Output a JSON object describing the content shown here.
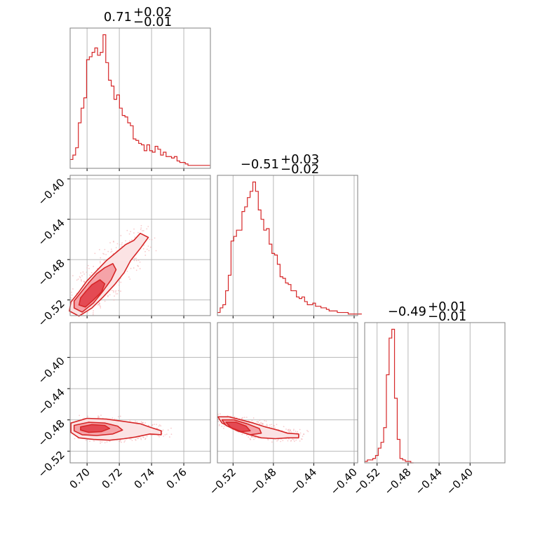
{
  "chart_data": {
    "type": "corner",
    "color": "#d62728",
    "fill_colors": [
      "#fbe3e4",
      "#f5a3a8",
      "#e44a53"
    ],
    "grid": true,
    "parameters": [
      {
        "index": 0,
        "median": 0.71,
        "plus": 0.02,
        "minus": 0.01,
        "title": {
          "main": "0.71",
          "sup": "+0.02",
          "sub": "−0.01"
        }
      },
      {
        "index": 1,
        "median": -0.51,
        "plus": 0.03,
        "minus": 0.02,
        "title": {
          "main": "−0.51",
          "sup": "+0.03",
          "sub": "−0.02"
        }
      },
      {
        "index": 2,
        "median": -0.49,
        "plus": 0.01,
        "minus": 0.01,
        "title": {
          "main": "−0.49",
          "sup": "+0.01",
          "sub": "−0.01"
        }
      }
    ],
    "axes": {
      "p0": {
        "range": [
          0.6895,
          0.7765
        ],
        "ticks": [
          0.7,
          0.72,
          0.74,
          0.76
        ],
        "tick_labels": [
          "0.70",
          "0.72",
          "0.74",
          "0.76"
        ]
      },
      "p1": {
        "range": [
          -0.5355,
          -0.3965
        ],
        "ticks": [
          -0.52,
          -0.48,
          -0.44,
          -0.4
        ],
        "tick_labels": [
          "−0.52",
          "−0.48",
          "−0.44",
          "−0.40"
        ]
      },
      "p2_row": {
        "range": [
          -0.535,
          -0.3555
        ],
        "ticks": [
          -0.52,
          -0.48,
          -0.44,
          -0.4
        ],
        "tick_labels": [
          "−0.52",
          "−0.48",
          "−0.44",
          "−0.40"
        ]
      },
      "p2_diag": {
        "range": [
          -0.536,
          -0.355
        ],
        "ticks": [
          -0.52,
          -0.48,
          -0.44,
          -0.4
        ],
        "tick_labels": [
          "−0.52",
          "−0.48",
          "−0.44",
          "−0.40"
        ]
      }
    },
    "hist0": {
      "bin_start": 0.6895,
      "bin_width": 0.0017,
      "counts": [
        0.06,
        0.09,
        0.14,
        0.31,
        0.41,
        0.48,
        0.74,
        0.76,
        0.79,
        0.82,
        0.77,
        0.79,
        0.91,
        0.72,
        0.6,
        0.56,
        0.47,
        0.5,
        0.41,
        0.36,
        0.35,
        0.31,
        0.29,
        0.2,
        0.19,
        0.17,
        0.16,
        0.12,
        0.16,
        0.12,
        0.11,
        0.15,
        0.13,
        0.09,
        0.11,
        0.08,
        0.08,
        0.07,
        0.08,
        0.05,
        0.04,
        0.04,
        0.03,
        0.02,
        0.02,
        0.02,
        0.02,
        0.02,
        0.02,
        0.02,
        0.02
      ]
    },
    "hist1": {
      "bin_start": -0.5355,
      "bin_width": 0.0027,
      "counts": [
        0.02,
        0.05,
        0.07,
        0.16,
        0.26,
        0.48,
        0.51,
        0.55,
        0.55,
        0.67,
        0.7,
        0.76,
        0.8,
        0.86,
        0.8,
        0.68,
        0.62,
        0.55,
        0.56,
        0.46,
        0.4,
        0.39,
        0.33,
        0.25,
        0.24,
        0.21,
        0.2,
        0.16,
        0.16,
        0.12,
        0.11,
        0.12,
        0.09,
        0.07,
        0.07,
        0.08,
        0.06,
        0.06,
        0.05,
        0.05,
        0.04,
        0.03,
        0.03,
        0.03,
        0.02,
        0.02,
        0.02,
        0.02,
        0.01,
        0.01,
        0.01,
        0.01,
        0.01
      ]
    },
    "hist2": {
      "bin_start": -0.536,
      "bin_width": 0.0035,
      "counts": [
        0.01,
        0.02,
        0.02,
        0.03,
        0.05,
        0.1,
        0.14,
        0.24,
        0.6,
        0.85,
        0.91,
        0.44,
        0.16,
        0.03,
        0.02,
        0.01,
        0.01,
        0.0
      ]
    },
    "contours_p1_vs_p0": [
      {
        "level": "outer",
        "points": [
          [
            0.689,
            -0.531
          ],
          [
            0.695,
            -0.536
          ],
          [
            0.703,
            -0.528
          ],
          [
            0.71,
            -0.517
          ],
          [
            0.717,
            -0.505
          ],
          [
            0.723,
            -0.493
          ],
          [
            0.727,
            -0.481
          ],
          [
            0.733,
            -0.469
          ],
          [
            0.738,
            -0.458
          ],
          [
            0.733,
            -0.454
          ],
          [
            0.729,
            -0.461
          ],
          [
            0.724,
            -0.465
          ],
          [
            0.718,
            -0.473
          ],
          [
            0.712,
            -0.481
          ],
          [
            0.706,
            -0.491
          ],
          [
            0.7,
            -0.501
          ],
          [
            0.695,
            -0.512
          ],
          [
            0.69,
            -0.522
          ]
        ]
      },
      {
        "level": "mid",
        "points": [
          [
            0.692,
            -0.528
          ],
          [
            0.697,
            -0.532
          ],
          [
            0.704,
            -0.523
          ],
          [
            0.71,
            -0.511
          ],
          [
            0.715,
            -0.5
          ],
          [
            0.718,
            -0.49
          ],
          [
            0.716,
            -0.484
          ],
          [
            0.711,
            -0.488
          ],
          [
            0.706,
            -0.494
          ],
          [
            0.701,
            -0.503
          ],
          [
            0.696,
            -0.513
          ],
          [
            0.692,
            -0.521
          ]
        ]
      },
      {
        "level": "inner",
        "points": [
          [
            0.695,
            -0.525
          ],
          [
            0.699,
            -0.527
          ],
          [
            0.704,
            -0.52
          ],
          [
            0.709,
            -0.512
          ],
          [
            0.711,
            -0.504
          ],
          [
            0.708,
            -0.5
          ],
          [
            0.703,
            -0.505
          ],
          [
            0.699,
            -0.512
          ],
          [
            0.696,
            -0.518
          ]
        ]
      }
    ],
    "contours_p2_vs_p0": [
      {
        "level": "outer",
        "points": [
          [
            0.69,
            -0.484
          ],
          [
            0.7,
            -0.478
          ],
          [
            0.712,
            -0.479
          ],
          [
            0.723,
            -0.482
          ],
          [
            0.733,
            -0.485
          ],
          [
            0.74,
            -0.49
          ],
          [
            0.746,
            -0.494
          ],
          [
            0.746,
            -0.499
          ],
          [
            0.739,
            -0.498
          ],
          [
            0.73,
            -0.502
          ],
          [
            0.723,
            -0.504
          ],
          [
            0.714,
            -0.506
          ],
          [
            0.704,
            -0.505
          ],
          [
            0.695,
            -0.503
          ],
          [
            0.69,
            -0.496
          ]
        ]
      },
      {
        "level": "mid",
        "points": [
          [
            0.692,
            -0.487
          ],
          [
            0.701,
            -0.483
          ],
          [
            0.711,
            -0.484
          ],
          [
            0.719,
            -0.488
          ],
          [
            0.722,
            -0.493
          ],
          [
            0.716,
            -0.498
          ],
          [
            0.706,
            -0.5
          ],
          [
            0.697,
            -0.499
          ],
          [
            0.692,
            -0.494
          ]
        ]
      },
      {
        "level": "inner",
        "points": [
          [
            0.696,
            -0.489
          ],
          [
            0.703,
            -0.486
          ],
          [
            0.711,
            -0.487
          ],
          [
            0.714,
            -0.491
          ],
          [
            0.709,
            -0.495
          ],
          [
            0.701,
            -0.496
          ],
          [
            0.696,
            -0.493
          ]
        ]
      }
    ],
    "contours_p2_vs_p1": [
      {
        "level": "outer",
        "points": [
          [
            -0.535,
            -0.476
          ],
          [
            -0.524,
            -0.476
          ],
          [
            -0.512,
            -0.48
          ],
          [
            -0.5,
            -0.484
          ],
          [
            -0.488,
            -0.489
          ],
          [
            -0.476,
            -0.493
          ],
          [
            -0.466,
            -0.497
          ],
          [
            -0.455,
            -0.498
          ],
          [
            -0.455,
            -0.503
          ],
          [
            -0.466,
            -0.503
          ],
          [
            -0.478,
            -0.504
          ],
          [
            -0.492,
            -0.503
          ],
          [
            -0.506,
            -0.498
          ],
          [
            -0.52,
            -0.491
          ],
          [
            -0.531,
            -0.484
          ]
        ]
      },
      {
        "level": "mid",
        "points": [
          [
            -0.531,
            -0.48
          ],
          [
            -0.519,
            -0.48
          ],
          [
            -0.506,
            -0.485
          ],
          [
            -0.494,
            -0.491
          ],
          [
            -0.492,
            -0.497
          ],
          [
            -0.503,
            -0.499
          ],
          [
            -0.516,
            -0.494
          ],
          [
            -0.527,
            -0.487
          ]
        ]
      },
      {
        "level": "inner",
        "points": [
          [
            -0.527,
            -0.483
          ],
          [
            -0.517,
            -0.483
          ],
          [
            -0.507,
            -0.488
          ],
          [
            -0.503,
            -0.494
          ],
          [
            -0.512,
            -0.495
          ],
          [
            -0.522,
            -0.49
          ]
        ]
      }
    ]
  }
}
